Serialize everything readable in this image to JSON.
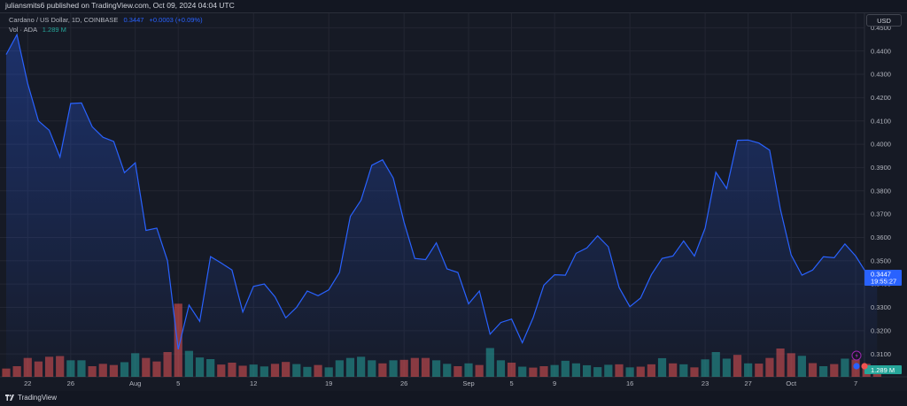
{
  "header": {
    "publisher_line": "juliansmits6 published on TradingView.com, Oct 09, 2024 04:04 UTC"
  },
  "legend": {
    "symbol": "Cardano / US Dollar, 1D, COINBASE",
    "price": "0.3447",
    "change": "+0.0003 (+0.09%)",
    "volume_label": "Vol · ADA",
    "volume_value": "1.289 M"
  },
  "currency": "USD",
  "footer": {
    "logo_text": "TradingView",
    "logo_icon": "tradingview-logo-icon"
  },
  "colors": {
    "line": "#2962ff",
    "up_volume": "#26a69a",
    "down_volume": "#ef5350",
    "background": "#161a25"
  },
  "chart_data": {
    "type": "area",
    "title": "",
    "ylim": [
      0.3002,
      0.4562
    ],
    "y_ticks": [
      "0.4500",
      "0.4400",
      "0.4300",
      "0.4200",
      "0.4100",
      "0.4000",
      "0.3900",
      "0.3800",
      "0.3700",
      "0.3600",
      "0.3500",
      "0.3400",
      "0.3300",
      "0.3200",
      "0.3100"
    ],
    "x_ticks": [
      {
        "label": "22",
        "date": "2024-07-22"
      },
      {
        "label": "26",
        "date": "2024-07-26"
      },
      {
        "label": "Aug",
        "date": "2024-08-01"
      },
      {
        "label": "5",
        "date": "2024-08-05"
      },
      {
        "label": "12",
        "date": "2024-08-12"
      },
      {
        "label": "19",
        "date": "2024-08-19"
      },
      {
        "label": "26",
        "date": "2024-08-26"
      },
      {
        "label": "Sep",
        "date": "2024-09-01"
      },
      {
        "label": "5",
        "date": "2024-09-05"
      },
      {
        "label": "9",
        "date": "2024-09-09"
      },
      {
        "label": "16",
        "date": "2024-09-16"
      },
      {
        "label": "23",
        "date": "2024-09-23"
      },
      {
        "label": "27",
        "date": "2024-09-27"
      },
      {
        "label": "Oct",
        "date": "2024-10-01"
      },
      {
        "label": "7",
        "date": "2024-10-07"
      }
    ],
    "last_price_label": "0.3447",
    "countdown_label": "19:55:27",
    "last_volume_label": "1.289 M",
    "x": [
      "2024-07-20",
      "2024-07-21",
      "2024-07-22",
      "2024-07-23",
      "2024-07-24",
      "2024-07-25",
      "2024-07-26",
      "2024-07-27",
      "2024-07-28",
      "2024-07-29",
      "2024-07-30",
      "2024-07-31",
      "2024-08-01",
      "2024-08-02",
      "2024-08-03",
      "2024-08-04",
      "2024-08-05",
      "2024-08-06",
      "2024-08-07",
      "2024-08-08",
      "2024-08-09",
      "2024-08-10",
      "2024-08-11",
      "2024-08-12",
      "2024-08-13",
      "2024-08-14",
      "2024-08-15",
      "2024-08-16",
      "2024-08-17",
      "2024-08-18",
      "2024-08-19",
      "2024-08-20",
      "2024-08-21",
      "2024-08-22",
      "2024-08-23",
      "2024-08-24",
      "2024-08-25",
      "2024-08-26",
      "2024-08-27",
      "2024-08-28",
      "2024-08-29",
      "2024-08-30",
      "2024-08-31",
      "2024-09-01",
      "2024-09-02",
      "2024-09-03",
      "2024-09-04",
      "2024-09-05",
      "2024-09-06",
      "2024-09-07",
      "2024-09-08",
      "2024-09-09",
      "2024-09-10",
      "2024-09-11",
      "2024-09-12",
      "2024-09-13",
      "2024-09-14",
      "2024-09-15",
      "2024-09-16",
      "2024-09-17",
      "2024-09-18",
      "2024-09-19",
      "2024-09-20",
      "2024-09-21",
      "2024-09-22",
      "2024-09-23",
      "2024-09-24",
      "2024-09-25",
      "2024-09-26",
      "2024-09-27",
      "2024-09-28",
      "2024-09-29",
      "2024-09-30",
      "2024-10-01",
      "2024-10-02",
      "2024-10-03",
      "2024-10-04",
      "2024-10-05",
      "2024-10-06",
      "2024-10-07",
      "2024-10-08",
      "2024-10-09"
    ],
    "series": [
      {
        "values": [
          0.4385,
          0.447,
          0.426,
          0.41,
          0.406,
          0.3945,
          0.4175,
          0.4177,
          0.4075,
          0.403,
          0.4012,
          0.3878,
          0.392,
          0.363,
          0.364,
          0.35,
          0.312,
          0.331,
          0.324,
          0.3518,
          0.349,
          0.346,
          0.328,
          0.339,
          0.34,
          0.3345,
          0.3255,
          0.33,
          0.337,
          0.335,
          0.3375,
          0.345,
          0.369,
          0.376,
          0.391,
          0.3933,
          0.3855,
          0.3665,
          0.351,
          0.3505,
          0.3577,
          0.3465,
          0.345,
          0.3315,
          0.337,
          0.3185,
          0.3235,
          0.325,
          0.3148,
          0.3255,
          0.3395,
          0.344,
          0.3438,
          0.3532,
          0.3555,
          0.3607,
          0.356,
          0.3385,
          0.3303,
          0.334,
          0.344,
          0.351,
          0.352,
          0.3585,
          0.352,
          0.364,
          0.388,
          0.381,
          0.4017,
          0.4018,
          0.4005,
          0.3975,
          0.372,
          0.3525,
          0.3438,
          0.346,
          0.3517,
          0.3513,
          0.3572,
          0.352,
          0.3447,
          0.345
        ]
      },
      {
        "values": [
          0.35,
          0.45,
          0.8,
          0.65,
          0.85,
          0.88,
          0.7,
          0.7,
          0.45,
          0.55,
          0.5,
          0.62,
          1.0,
          0.8,
          0.65,
          1.05,
          3.1,
          1.1,
          0.82,
          0.75,
          0.52,
          0.6,
          0.47,
          0.52,
          0.44,
          0.55,
          0.63,
          0.54,
          0.42,
          0.5,
          0.4,
          0.7,
          0.8,
          0.85,
          0.7,
          0.57,
          0.7,
          0.72,
          0.8,
          0.8,
          0.7,
          0.55,
          0.45,
          0.57,
          0.5,
          1.22,
          0.7,
          0.6,
          0.43,
          0.39,
          0.45,
          0.5,
          0.68,
          0.57,
          0.49,
          0.41,
          0.51,
          0.53,
          0.4,
          0.43,
          0.53,
          0.79,
          0.57,
          0.53,
          0.4,
          0.74,
          1.05,
          0.77,
          0.93,
          0.57,
          0.56,
          0.8,
          1.2,
          1.0,
          0.89,
          0.58,
          0.45,
          0.54,
          0.77,
          0.73,
          0.55,
          0.3
        ],
        "directions": [
          "d",
          "d",
          "d",
          "d",
          "d",
          "d",
          "u",
          "u",
          "d",
          "d",
          "d",
          "u",
          "u",
          "d",
          "d",
          "d",
          "d",
          "u",
          "u",
          "u",
          "d",
          "d",
          "d",
          "u",
          "u",
          "d",
          "d",
          "u",
          "u",
          "d",
          "u",
          "u",
          "u",
          "u",
          "u",
          "d",
          "u",
          "d",
          "d",
          "d",
          "u",
          "u",
          "d",
          "u",
          "d",
          "u",
          "u",
          "d",
          "u",
          "d",
          "d",
          "u",
          "u",
          "u",
          "u",
          "u",
          "u",
          "d",
          "u",
          "d",
          "d",
          "u",
          "d",
          "u",
          "d",
          "u",
          "u",
          "u",
          "d",
          "u",
          "d",
          "d",
          "d",
          "d",
          "u",
          "d",
          "u",
          "d",
          "u",
          "d",
          "d",
          "d"
        ],
        "ylim": [
          0,
          4.2
        ]
      }
    ]
  }
}
